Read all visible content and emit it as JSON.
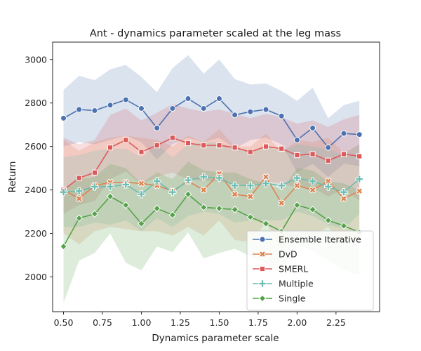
{
  "chart_data": {
    "type": "line",
    "title": "Ant - dynamics parameter scaled at the leg mass",
    "xlabel": "Dynamics parameter scale",
    "ylabel": "Return",
    "xlim": [
      0.43,
      2.53
    ],
    "ylim": [
      1840,
      3080
    ],
    "xticks": [
      0.5,
      0.75,
      1.0,
      1.25,
      1.5,
      1.75,
      2.0,
      2.25
    ],
    "xtick_labels": [
      "0.50",
      "0.75",
      "1.00",
      "1.25",
      "1.50",
      "1.75",
      "2.00",
      "2.25"
    ],
    "yticks": [
      2000,
      2200,
      2400,
      2600,
      2800,
      3000
    ],
    "ytick_labels": [
      "2000",
      "2200",
      "2400",
      "2600",
      "2800",
      "3000"
    ],
    "grid": false,
    "legend_position": "lower-right",
    "x": [
      0.5,
      0.6,
      0.7,
      0.8,
      0.9,
      1.0,
      1.1,
      1.2,
      1.3,
      1.4,
      1.5,
      1.6,
      1.7,
      1.8,
      1.9,
      2.0,
      2.1,
      2.2,
      2.3,
      2.4
    ],
    "series": [
      {
        "name": "Ensemble Iterative",
        "color": "#4c72b0",
        "marker": "circle",
        "values": [
          2730,
          2770,
          2765,
          2790,
          2815,
          2775,
          2685,
          2775,
          2820,
          2775,
          2820,
          2745,
          2760,
          2770,
          2740,
          2630,
          2685,
          2595,
          2660,
          2655
        ],
        "upper": [
          2860,
          2925,
          2905,
          2955,
          2975,
          2920,
          2850,
          2960,
          3020,
          2935,
          3000,
          2910,
          2885,
          2890,
          2855,
          2810,
          2870,
          2730,
          2790,
          2810
        ],
        "lower": [
          2600,
          2620,
          2610,
          2630,
          2650,
          2620,
          2540,
          2610,
          2640,
          2620,
          2640,
          2590,
          2630,
          2640,
          2610,
          2480,
          2520,
          2460,
          2520,
          2510
        ]
      },
      {
        "name": "DvD",
        "color": "#dd8452",
        "marker": "x",
        "values": [
          2400,
          2360,
          2420,
          2435,
          2435,
          2430,
          2420,
          2395,
          2440,
          2400,
          2475,
          2380,
          2370,
          2460,
          2340,
          2420,
          2400,
          2440,
          2360,
          2395
        ],
        "upper": [
          2630,
          2580,
          2620,
          2640,
          2650,
          2640,
          2630,
          2600,
          2650,
          2620,
          2680,
          2600,
          2600,
          2660,
          2570,
          2630,
          2620,
          2640,
          2570,
          2610
        ],
        "lower": [
          2200,
          2150,
          2210,
          2230,
          2220,
          2210,
          2210,
          2190,
          2230,
          2190,
          2260,
          2170,
          2160,
          2250,
          2130,
          2210,
          2190,
          2230,
          2150,
          2180
        ]
      },
      {
        "name": "SMERL",
        "color": "#dd5a5a",
        "marker": "square",
        "values": [
          2400,
          2455,
          2480,
          2595,
          2630,
          2575,
          2605,
          2640,
          2615,
          2605,
          2605,
          2595,
          2575,
          2600,
          2590,
          2560,
          2565,
          2535,
          2565,
          2555
        ],
        "upper": [
          2640,
          2610,
          2630,
          2745,
          2775,
          2720,
          2755,
          2795,
          2775,
          2760,
          2770,
          2750,
          2730,
          2750,
          2735,
          2705,
          2720,
          2690,
          2725,
          2745
        ],
        "lower": [
          2290,
          2330,
          2350,
          2450,
          2485,
          2425,
          2460,
          2480,
          2450,
          2440,
          2440,
          2430,
          2410,
          2440,
          2430,
          2410,
          2410,
          2370,
          2405,
          2350
        ]
      },
      {
        "name": "Multiple",
        "color": "#6bbcb2",
        "marker": "plus",
        "values": [
          2390,
          2395,
          2415,
          2415,
          2425,
          2380,
          2440,
          2390,
          2445,
          2460,
          2455,
          2420,
          2420,
          2430,
          2420,
          2455,
          2440,
          2415,
          2390,
          2450
        ],
        "upper": [
          2550,
          2560,
          2580,
          2590,
          2590,
          2550,
          2610,
          2550,
          2610,
          2620,
          2620,
          2590,
          2580,
          2600,
          2580,
          2610,
          2600,
          2590,
          2560,
          2610
        ],
        "lower": [
          2230,
          2230,
          2250,
          2240,
          2260,
          2210,
          2270,
          2230,
          2280,
          2300,
          2290,
          2250,
          2260,
          2260,
          2260,
          2300,
          2280,
          2240,
          2220,
          2290
        ]
      },
      {
        "name": "Single",
        "color": "#55a24a",
        "marker": "diamond",
        "values": [
          2140,
          2270,
          2290,
          2370,
          2330,
          2245,
          2315,
          2285,
          2380,
          2320,
          2315,
          2310,
          2275,
          2245,
          2210,
          2330,
          2310,
          2260,
          2235,
          2205
        ],
        "upper": [
          2400,
          2450,
          2460,
          2520,
          2500,
          2430,
          2480,
          2450,
          2530,
          2490,
          2480,
          2480,
          2450,
          2430,
          2400,
          2500,
          2490,
          2440,
          2430,
          2400
        ],
        "lower": [
          1880,
          2075,
          2110,
          2200,
          2065,
          2030,
          2140,
          2115,
          2205,
          2085,
          2110,
          2130,
          2095,
          2060,
          2020,
          2150,
          2120,
          2075,
          2030,
          2010
        ]
      }
    ]
  }
}
